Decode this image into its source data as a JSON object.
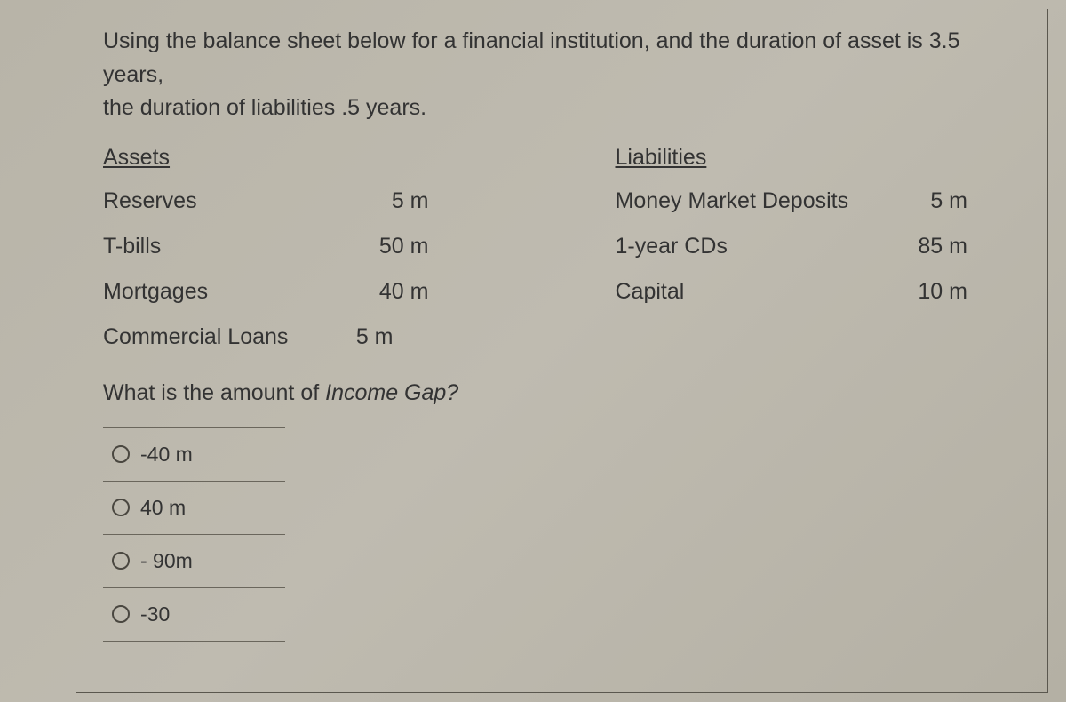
{
  "prompt_line1": "Using the balance sheet below for a financial institution, and the duration of asset is 3.5 years,",
  "prompt_line2": "the duration of liabilities .5 years.",
  "assets_header": "Assets",
  "liabilities_header": "Liabilities",
  "assets": [
    {
      "label": "Reserves",
      "value": "5 m"
    },
    {
      "label": "T-bills",
      "value": "50 m"
    },
    {
      "label": "Mortgages",
      "value": "40 m"
    },
    {
      "label": "Commercial Loans",
      "value": "5 m"
    }
  ],
  "liabilities": [
    {
      "label": "Money Market Deposits",
      "value": "5 m"
    },
    {
      "label": "1-year CDs",
      "value": "85 m"
    },
    {
      "label": "Capital",
      "value": "10 m"
    }
  ],
  "question_prefix": "What is the amount of ",
  "question_em": "Income Gap?",
  "options": [
    "-40 m",
    "40 m",
    "- 90m",
    "-30"
  ]
}
